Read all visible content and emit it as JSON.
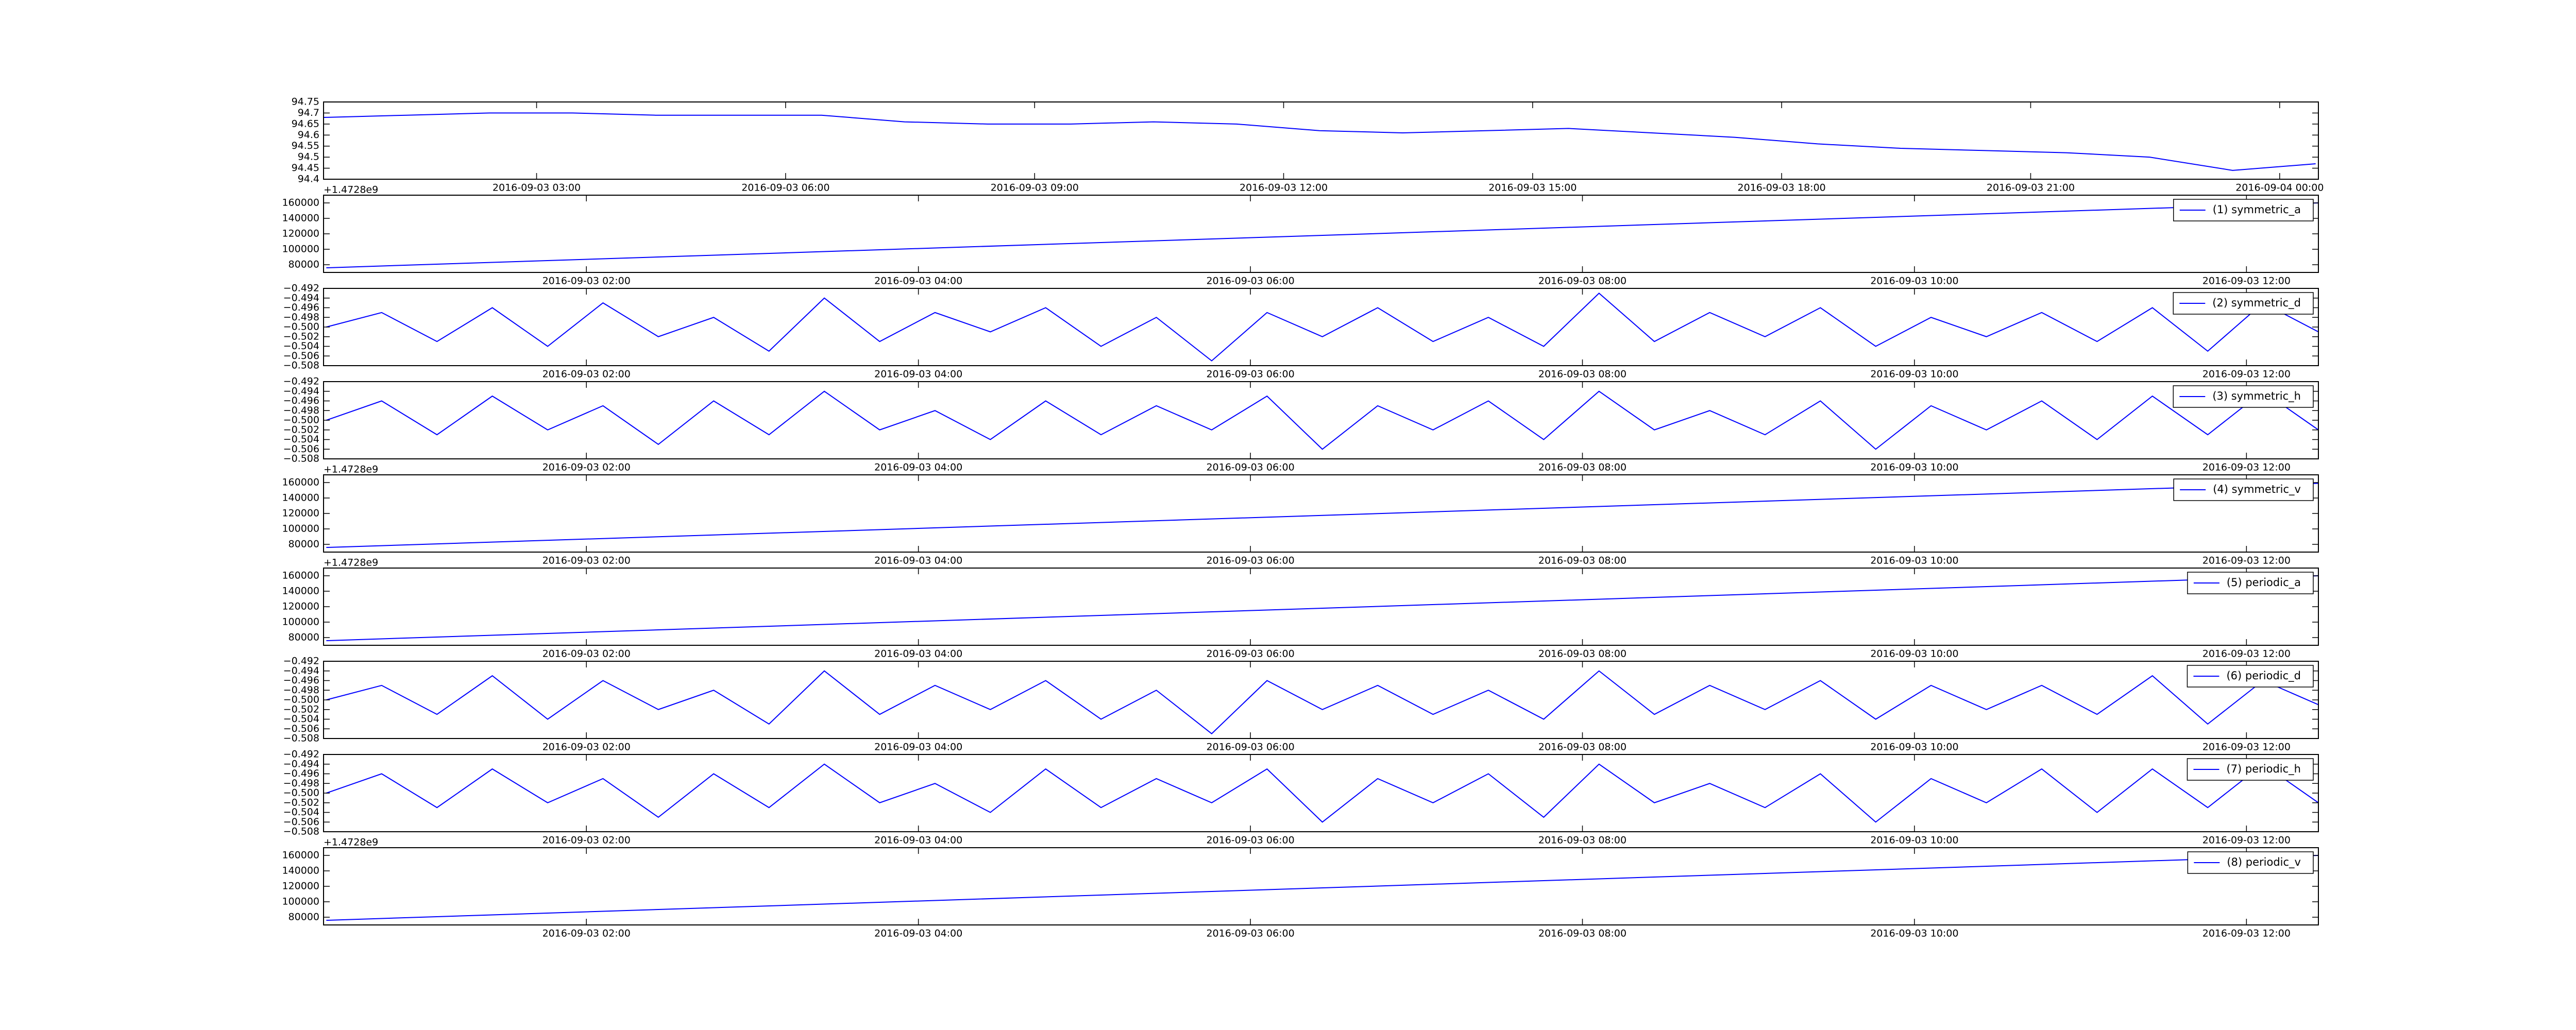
{
  "chart_data": [
    {
      "type": "line",
      "color": "#0000ff",
      "x": [
        "2016-09-03 00:26",
        "2016-09-03 01:26",
        "2016-09-03 02:26",
        "2016-09-03 03:26",
        "2016-09-03 04:26",
        "2016-09-03 05:26",
        "2016-09-03 06:26",
        "2016-09-03 07:26",
        "2016-09-03 08:26",
        "2016-09-03 09:26",
        "2016-09-03 10:26",
        "2016-09-03 11:26",
        "2016-09-03 12:26",
        "2016-09-03 13:26",
        "2016-09-03 14:26",
        "2016-09-03 15:26",
        "2016-09-03 16:26",
        "2016-09-03 17:26",
        "2016-09-03 18:26",
        "2016-09-03 19:26",
        "2016-09-03 20:26",
        "2016-09-03 21:26",
        "2016-09-03 22:26",
        "2016-09-03 23:26",
        "2016-09-04 00:26"
      ],
      "values": [
        94.68,
        94.69,
        94.7,
        94.7,
        94.69,
        94.69,
        94.69,
        94.66,
        94.65,
        94.65,
        94.66,
        94.65,
        94.62,
        94.61,
        94.62,
        94.63,
        94.61,
        94.59,
        94.56,
        94.54,
        94.53,
        94.52,
        94.5,
        94.44,
        94.47
      ],
      "xlim": [
        "2016-09-03 00:26",
        "2016-09-04 00:28"
      ],
      "xticks": [
        "2016-09-03 03:00",
        "2016-09-03 06:00",
        "2016-09-03 09:00",
        "2016-09-03 12:00",
        "2016-09-03 15:00",
        "2016-09-03 18:00",
        "2016-09-03 21:00",
        "2016-09-04 00:00"
      ],
      "ylim": [
        94.4,
        94.75
      ],
      "yticks": [
        94.4,
        94.45,
        94.5,
        94.55,
        94.6,
        94.65,
        94.7,
        94.75
      ]
    },
    {
      "type": "line",
      "legend": "upper right",
      "y_offset_label": "+1.4728e9",
      "x": [
        "2016-09-03 00:26",
        "2016-09-03 12:26"
      ],
      "series": [
        {
          "name": "(1) symmetric_a",
          "color": "#0000ff",
          "values": [
            76000,
            160000
          ]
        }
      ],
      "xlim": [
        "2016-09-03 00:25",
        "2016-09-03 12:26"
      ],
      "xticks": [
        "2016-09-03 02:00",
        "2016-09-03 04:00",
        "2016-09-03 06:00",
        "2016-09-03 08:00",
        "2016-09-03 10:00",
        "2016-09-03 12:00"
      ],
      "ylim": [
        70000,
        170000
      ],
      "yticks": [
        80000,
        100000,
        120000,
        140000,
        160000
      ]
    },
    {
      "type": "line",
      "legend": "upper right",
      "x": [
        "2016-09-03 00:26",
        "2016-09-03 00:46",
        "2016-09-03 01:06",
        "2016-09-03 01:26",
        "2016-09-03 01:46",
        "2016-09-03 02:06",
        "2016-09-03 02:26",
        "2016-09-03 02:46",
        "2016-09-03 03:06",
        "2016-09-03 03:26",
        "2016-09-03 03:46",
        "2016-09-03 04:06",
        "2016-09-03 04:26",
        "2016-09-03 04:46",
        "2016-09-03 05:06",
        "2016-09-03 05:26",
        "2016-09-03 05:46",
        "2016-09-03 06:06",
        "2016-09-03 06:26",
        "2016-09-03 06:46",
        "2016-09-03 07:06",
        "2016-09-03 07:26",
        "2016-09-03 07:46",
        "2016-09-03 08:06",
        "2016-09-03 08:26",
        "2016-09-03 08:46",
        "2016-09-03 09:06",
        "2016-09-03 09:26",
        "2016-09-03 09:46",
        "2016-09-03 10:06",
        "2016-09-03 10:26",
        "2016-09-03 10:46",
        "2016-09-03 11:06",
        "2016-09-03 11:26",
        "2016-09-03 11:46",
        "2016-09-03 12:06",
        "2016-09-03 12:26"
      ],
      "series": [
        {
          "name": "(2) symmetric_d",
          "color": "#0000ff",
          "values": [
            -0.5,
            -0.497,
            -0.503,
            -0.496,
            -0.504,
            -0.495,
            -0.502,
            -0.498,
            -0.505,
            -0.494,
            -0.503,
            -0.497,
            -0.501,
            -0.496,
            -0.504,
            -0.498,
            -0.507,
            -0.497,
            -0.502,
            -0.496,
            -0.503,
            -0.498,
            -0.504,
            -0.493,
            -0.503,
            -0.497,
            -0.502,
            -0.496,
            -0.504,
            -0.498,
            -0.502,
            -0.497,
            -0.503,
            -0.496,
            -0.505,
            -0.495,
            -0.501
          ]
        }
      ],
      "xlim": [
        "2016-09-03 00:25",
        "2016-09-03 12:26"
      ],
      "xticks": [
        "2016-09-03 02:00",
        "2016-09-03 04:00",
        "2016-09-03 06:00",
        "2016-09-03 08:00",
        "2016-09-03 10:00",
        "2016-09-03 12:00"
      ],
      "ylim": [
        -0.508,
        -0.492
      ],
      "yticks": [
        {
          "value": -0.508,
          "label": "−0.508"
        },
        {
          "value": -0.506,
          "label": "−0.506"
        },
        {
          "value": -0.504,
          "label": "−0.504"
        },
        {
          "value": -0.502,
          "label": "−0.502"
        },
        {
          "value": -0.5,
          "label": "−0.500"
        },
        {
          "value": -0.498,
          "label": "−0.498"
        },
        {
          "value": -0.496,
          "label": "−0.496"
        },
        {
          "value": -0.494,
          "label": "−0.494"
        },
        {
          "value": -0.492,
          "label": "−0.492"
        }
      ]
    },
    {
      "type": "line",
      "legend": "upper right",
      "x": [
        "2016-09-03 00:26",
        "2016-09-03 00:46",
        "2016-09-03 01:06",
        "2016-09-03 01:26",
        "2016-09-03 01:46",
        "2016-09-03 02:06",
        "2016-09-03 02:26",
        "2016-09-03 02:46",
        "2016-09-03 03:06",
        "2016-09-03 03:26",
        "2016-09-03 03:46",
        "2016-09-03 04:06",
        "2016-09-03 04:26",
        "2016-09-03 04:46",
        "2016-09-03 05:06",
        "2016-09-03 05:26",
        "2016-09-03 05:46",
        "2016-09-03 06:06",
        "2016-09-03 06:26",
        "2016-09-03 06:46",
        "2016-09-03 07:06",
        "2016-09-03 07:26",
        "2016-09-03 07:46",
        "2016-09-03 08:06",
        "2016-09-03 08:26",
        "2016-09-03 08:46",
        "2016-09-03 09:06",
        "2016-09-03 09:26",
        "2016-09-03 09:46",
        "2016-09-03 10:06",
        "2016-09-03 10:26",
        "2016-09-03 10:46",
        "2016-09-03 11:06",
        "2016-09-03 11:26",
        "2016-09-03 11:46",
        "2016-09-03 12:06",
        "2016-09-03 12:26"
      ],
      "series": [
        {
          "name": "(3) symmetric_h",
          "color": "#0000ff",
          "values": [
            -0.5,
            -0.496,
            -0.503,
            -0.495,
            -0.502,
            -0.497,
            -0.505,
            -0.496,
            -0.503,
            -0.494,
            -0.502,
            -0.498,
            -0.504,
            -0.496,
            -0.503,
            -0.497,
            -0.502,
            -0.495,
            -0.506,
            -0.497,
            -0.502,
            -0.496,
            -0.504,
            -0.494,
            -0.502,
            -0.498,
            -0.503,
            -0.496,
            -0.506,
            -0.497,
            -0.502,
            -0.496,
            -0.504,
            -0.495,
            -0.503,
            -0.494,
            -0.502
          ]
        }
      ],
      "xlim": [
        "2016-09-03 00:25",
        "2016-09-03 12:26"
      ],
      "xticks": [
        "2016-09-03 02:00",
        "2016-09-03 04:00",
        "2016-09-03 06:00",
        "2016-09-03 08:00",
        "2016-09-03 10:00",
        "2016-09-03 12:00"
      ],
      "ylim": [
        -0.508,
        -0.492
      ],
      "yticks": [
        {
          "value": -0.508,
          "label": "−0.508"
        },
        {
          "value": -0.506,
          "label": "−0.506"
        },
        {
          "value": -0.504,
          "label": "−0.504"
        },
        {
          "value": -0.502,
          "label": "−0.502"
        },
        {
          "value": -0.5,
          "label": "−0.500"
        },
        {
          "value": -0.498,
          "label": "−0.498"
        },
        {
          "value": -0.496,
          "label": "−0.496"
        },
        {
          "value": -0.494,
          "label": "−0.494"
        },
        {
          "value": -0.492,
          "label": "−0.492"
        }
      ]
    },
    {
      "type": "line",
      "legend": "upper right",
      "y_offset_label": "+1.4728e9",
      "x": [
        "2016-09-03 00:26",
        "2016-09-03 12:26"
      ],
      "series": [
        {
          "name": "(4) symmetric_v",
          "color": "#0000ff",
          "values": [
            76000,
            159000
          ]
        }
      ],
      "xlim": [
        "2016-09-03 00:25",
        "2016-09-03 12:26"
      ],
      "xticks": [
        "2016-09-03 02:00",
        "2016-09-03 04:00",
        "2016-09-03 06:00",
        "2016-09-03 08:00",
        "2016-09-03 10:00",
        "2016-09-03 12:00"
      ],
      "ylim": [
        70000,
        170000
      ],
      "yticks": [
        80000,
        100000,
        120000,
        140000,
        160000
      ]
    },
    {
      "type": "line",
      "legend": "upper right",
      "y_offset_label": "+1.4728e9",
      "x": [
        "2016-09-03 00:26",
        "2016-09-03 12:26"
      ],
      "series": [
        {
          "name": "(5) periodic_a",
          "color": "#0000ff",
          "values": [
            76000,
            160000
          ]
        }
      ],
      "xlim": [
        "2016-09-03 00:25",
        "2016-09-03 12:26"
      ],
      "xticks": [
        "2016-09-03 02:00",
        "2016-09-03 04:00",
        "2016-09-03 06:00",
        "2016-09-03 08:00",
        "2016-09-03 10:00",
        "2016-09-03 12:00"
      ],
      "ylim": [
        70000,
        170000
      ],
      "yticks": [
        80000,
        100000,
        120000,
        140000,
        160000
      ]
    },
    {
      "type": "line",
      "legend": "upper right",
      "x": [
        "2016-09-03 00:26",
        "2016-09-03 00:46",
        "2016-09-03 01:06",
        "2016-09-03 01:26",
        "2016-09-03 01:46",
        "2016-09-03 02:06",
        "2016-09-03 02:26",
        "2016-09-03 02:46",
        "2016-09-03 03:06",
        "2016-09-03 03:26",
        "2016-09-03 03:46",
        "2016-09-03 04:06",
        "2016-09-03 04:26",
        "2016-09-03 04:46",
        "2016-09-03 05:06",
        "2016-09-03 05:26",
        "2016-09-03 05:46",
        "2016-09-03 06:06",
        "2016-09-03 06:26",
        "2016-09-03 06:46",
        "2016-09-03 07:06",
        "2016-09-03 07:26",
        "2016-09-03 07:46",
        "2016-09-03 08:06",
        "2016-09-03 08:26",
        "2016-09-03 08:46",
        "2016-09-03 09:06",
        "2016-09-03 09:26",
        "2016-09-03 09:46",
        "2016-09-03 10:06",
        "2016-09-03 10:26",
        "2016-09-03 10:46",
        "2016-09-03 11:06",
        "2016-09-03 11:26",
        "2016-09-03 11:46",
        "2016-09-03 12:06",
        "2016-09-03 12:26"
      ],
      "series": [
        {
          "name": "(6) periodic_d",
          "color": "#0000ff",
          "values": [
            -0.5,
            -0.497,
            -0.503,
            -0.495,
            -0.504,
            -0.496,
            -0.502,
            -0.498,
            -0.505,
            -0.494,
            -0.503,
            -0.497,
            -0.502,
            -0.496,
            -0.504,
            -0.498,
            -0.507,
            -0.496,
            -0.502,
            -0.497,
            -0.503,
            -0.498,
            -0.504,
            -0.494,
            -0.503,
            -0.497,
            -0.502,
            -0.496,
            -0.504,
            -0.497,
            -0.502,
            -0.497,
            -0.503,
            -0.495,
            -0.505,
            -0.496,
            -0.501
          ]
        }
      ],
      "xlim": [
        "2016-09-03 00:25",
        "2016-09-03 12:26"
      ],
      "xticks": [
        "2016-09-03 02:00",
        "2016-09-03 04:00",
        "2016-09-03 06:00",
        "2016-09-03 08:00",
        "2016-09-03 10:00",
        "2016-09-03 12:00"
      ],
      "ylim": [
        -0.508,
        -0.492
      ],
      "yticks": [
        {
          "value": -0.508,
          "label": "−0.508"
        },
        {
          "value": -0.506,
          "label": "−0.506"
        },
        {
          "value": -0.504,
          "label": "−0.504"
        },
        {
          "value": -0.502,
          "label": "−0.502"
        },
        {
          "value": -0.5,
          "label": "−0.500"
        },
        {
          "value": -0.498,
          "label": "−0.498"
        },
        {
          "value": -0.496,
          "label": "−0.496"
        },
        {
          "value": -0.494,
          "label": "−0.494"
        },
        {
          "value": -0.492,
          "label": "−0.492"
        }
      ]
    },
    {
      "type": "line",
      "legend": "upper right",
      "x": [
        "2016-09-03 00:26",
        "2016-09-03 00:46",
        "2016-09-03 01:06",
        "2016-09-03 01:26",
        "2016-09-03 01:46",
        "2016-09-03 02:06",
        "2016-09-03 02:26",
        "2016-09-03 02:46",
        "2016-09-03 03:06",
        "2016-09-03 03:26",
        "2016-09-03 03:46",
        "2016-09-03 04:06",
        "2016-09-03 04:26",
        "2016-09-03 04:46",
        "2016-09-03 05:06",
        "2016-09-03 05:26",
        "2016-09-03 05:46",
        "2016-09-03 06:06",
        "2016-09-03 06:26",
        "2016-09-03 06:46",
        "2016-09-03 07:06",
        "2016-09-03 07:26",
        "2016-09-03 07:46",
        "2016-09-03 08:06",
        "2016-09-03 08:26",
        "2016-09-03 08:46",
        "2016-09-03 09:06",
        "2016-09-03 09:26",
        "2016-09-03 09:46",
        "2016-09-03 10:06",
        "2016-09-03 10:26",
        "2016-09-03 10:46",
        "2016-09-03 11:06",
        "2016-09-03 11:26",
        "2016-09-03 11:46",
        "2016-09-03 12:06",
        "2016-09-03 12:26"
      ],
      "series": [
        {
          "name": "(7) periodic_h",
          "color": "#0000ff",
          "values": [
            -0.5,
            -0.496,
            -0.503,
            -0.495,
            -0.502,
            -0.497,
            -0.505,
            -0.496,
            -0.503,
            -0.494,
            -0.502,
            -0.498,
            -0.504,
            -0.495,
            -0.503,
            -0.497,
            -0.502,
            -0.495,
            -0.506,
            -0.497,
            -0.502,
            -0.496,
            -0.505,
            -0.494,
            -0.502,
            -0.498,
            -0.503,
            -0.496,
            -0.506,
            -0.497,
            -0.502,
            -0.495,
            -0.504,
            -0.495,
            -0.503,
            -0.494,
            -0.502
          ]
        }
      ],
      "xlim": [
        "2016-09-03 00:25",
        "2016-09-03 12:26"
      ],
      "xticks": [
        "2016-09-03 02:00",
        "2016-09-03 04:00",
        "2016-09-03 06:00",
        "2016-09-03 08:00",
        "2016-09-03 10:00",
        "2016-09-03 12:00"
      ],
      "ylim": [
        -0.508,
        -0.492
      ],
      "yticks": [
        {
          "value": -0.508,
          "label": "−0.508"
        },
        {
          "value": -0.506,
          "label": "−0.506"
        },
        {
          "value": -0.504,
          "label": "−0.504"
        },
        {
          "value": -0.502,
          "label": "−0.502"
        },
        {
          "value": -0.5,
          "label": "−0.500"
        },
        {
          "value": -0.498,
          "label": "−0.498"
        },
        {
          "value": -0.496,
          "label": "−0.496"
        },
        {
          "value": -0.494,
          "label": "−0.494"
        },
        {
          "value": -0.492,
          "label": "−0.492"
        }
      ]
    },
    {
      "type": "line",
      "legend": "upper right",
      "y_offset_label": "+1.4728e9",
      "x": [
        "2016-09-03 00:26",
        "2016-09-03 12:26"
      ],
      "series": [
        {
          "name": "(8) periodic_v",
          "color": "#0000ff",
          "values": [
            76000,
            160000
          ]
        }
      ],
      "xlim": [
        "2016-09-03 00:25",
        "2016-09-03 12:26"
      ],
      "xticks": [
        "2016-09-03 02:00",
        "2016-09-03 04:00",
        "2016-09-03 06:00",
        "2016-09-03 08:00",
        "2016-09-03 10:00",
        "2016-09-03 12:00"
      ],
      "ylim": [
        70000,
        170000
      ],
      "yticks": [
        80000,
        100000,
        120000,
        140000,
        160000
      ]
    }
  ]
}
